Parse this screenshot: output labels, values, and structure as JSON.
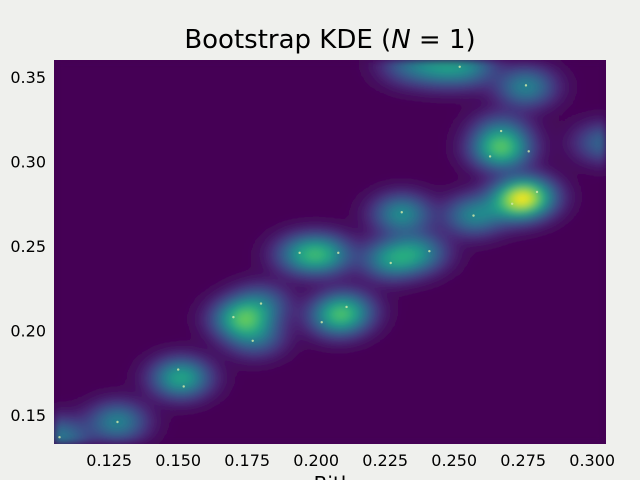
{
  "chart_data": {
    "type": "heatmap",
    "title": "Bootstrap KDE (N = 1)",
    "title_parts": {
      "prefix": "Bootstrap KDE (",
      "math_n": "N",
      "math_eq": " = 1",
      "suffix": ")"
    },
    "xlabel": "Bitl",
    "ylabel": "",
    "xlim": [
      0.105,
      0.305
    ],
    "ylim": [
      0.133,
      0.36
    ],
    "xticks": [
      0.125,
      0.15,
      0.175,
      0.2,
      0.225,
      0.25,
      0.275,
      0.3
    ],
    "xtick_labels": [
      "0.125",
      "0.150",
      "0.175",
      "0.200",
      "0.225",
      "0.250",
      "0.275",
      "0.300"
    ],
    "yticks": [
      0.15,
      0.2,
      0.25,
      0.3,
      0.35
    ],
    "ytick_labels": [
      "0.15",
      "0.20",
      "0.25",
      "0.30",
      "0.35"
    ],
    "grid": false,
    "colormap": "viridis",
    "colors": {
      "background": "#eff0ed",
      "plot_floor": "#440154",
      "point": "#cfe8a8"
    },
    "points": [
      {
        "x": 0.107,
        "y": 0.137
      },
      {
        "x": 0.128,
        "y": 0.146
      },
      {
        "x": 0.15,
        "y": 0.177
      },
      {
        "x": 0.152,
        "y": 0.167
      },
      {
        "x": 0.17,
        "y": 0.208
      },
      {
        "x": 0.177,
        "y": 0.194
      },
      {
        "x": 0.18,
        "y": 0.216
      },
      {
        "x": 0.194,
        "y": 0.246
      },
      {
        "x": 0.202,
        "y": 0.205
      },
      {
        "x": 0.208,
        "y": 0.246
      },
      {
        "x": 0.211,
        "y": 0.214
      },
      {
        "x": 0.227,
        "y": 0.24
      },
      {
        "x": 0.231,
        "y": 0.27
      },
      {
        "x": 0.241,
        "y": 0.247
      },
      {
        "x": 0.252,
        "y": 0.356
      },
      {
        "x": 0.257,
        "y": 0.268
      },
      {
        "x": 0.263,
        "y": 0.303
      },
      {
        "x": 0.267,
        "y": 0.318
      },
      {
        "x": 0.271,
        "y": 0.275
      },
      {
        "x": 0.276,
        "y": 0.345
      },
      {
        "x": 0.277,
        "y": 0.306
      },
      {
        "x": 0.28,
        "y": 0.282
      }
    ],
    "density_peaks": [
      {
        "x": 0.107,
        "y": 0.137,
        "w": 0.45
      },
      {
        "x": 0.128,
        "y": 0.146,
        "w": 0.5
      },
      {
        "x": 0.151,
        "y": 0.172,
        "w": 0.7
      },
      {
        "x": 0.173,
        "y": 0.207,
        "w": 0.75
      },
      {
        "x": 0.178,
        "y": 0.196,
        "w": 0.35
      },
      {
        "x": 0.18,
        "y": 0.216,
        "w": 0.35
      },
      {
        "x": 0.195,
        "y": 0.245,
        "w": 0.45
      },
      {
        "x": 0.203,
        "y": 0.245,
        "w": 0.55
      },
      {
        "x": 0.208,
        "y": 0.208,
        "w": 0.6
      },
      {
        "x": 0.211,
        "y": 0.213,
        "w": 0.35
      },
      {
        "x": 0.227,
        "y": 0.242,
        "w": 0.55
      },
      {
        "x": 0.237,
        "y": 0.246,
        "w": 0.5
      },
      {
        "x": 0.231,
        "y": 0.269,
        "w": 0.55
      },
      {
        "x": 0.244,
        "y": 0.356,
        "w": 0.45
      },
      {
        "x": 0.255,
        "y": 0.356,
        "w": 0.45
      },
      {
        "x": 0.233,
        "y": 0.357,
        "w": 0.3
      },
      {
        "x": 0.257,
        "y": 0.268,
        "w": 0.5
      },
      {
        "x": 0.267,
        "y": 0.307,
        "w": 0.8
      },
      {
        "x": 0.267,
        "y": 0.318,
        "w": 0.3
      },
      {
        "x": 0.276,
        "y": 0.279,
        "w": 1.0
      },
      {
        "x": 0.271,
        "y": 0.275,
        "w": 0.4
      },
      {
        "x": 0.276,
        "y": 0.344,
        "w": 0.5
      },
      {
        "x": 0.304,
        "y": 0.311,
        "w": 0.35
      }
    ]
  }
}
